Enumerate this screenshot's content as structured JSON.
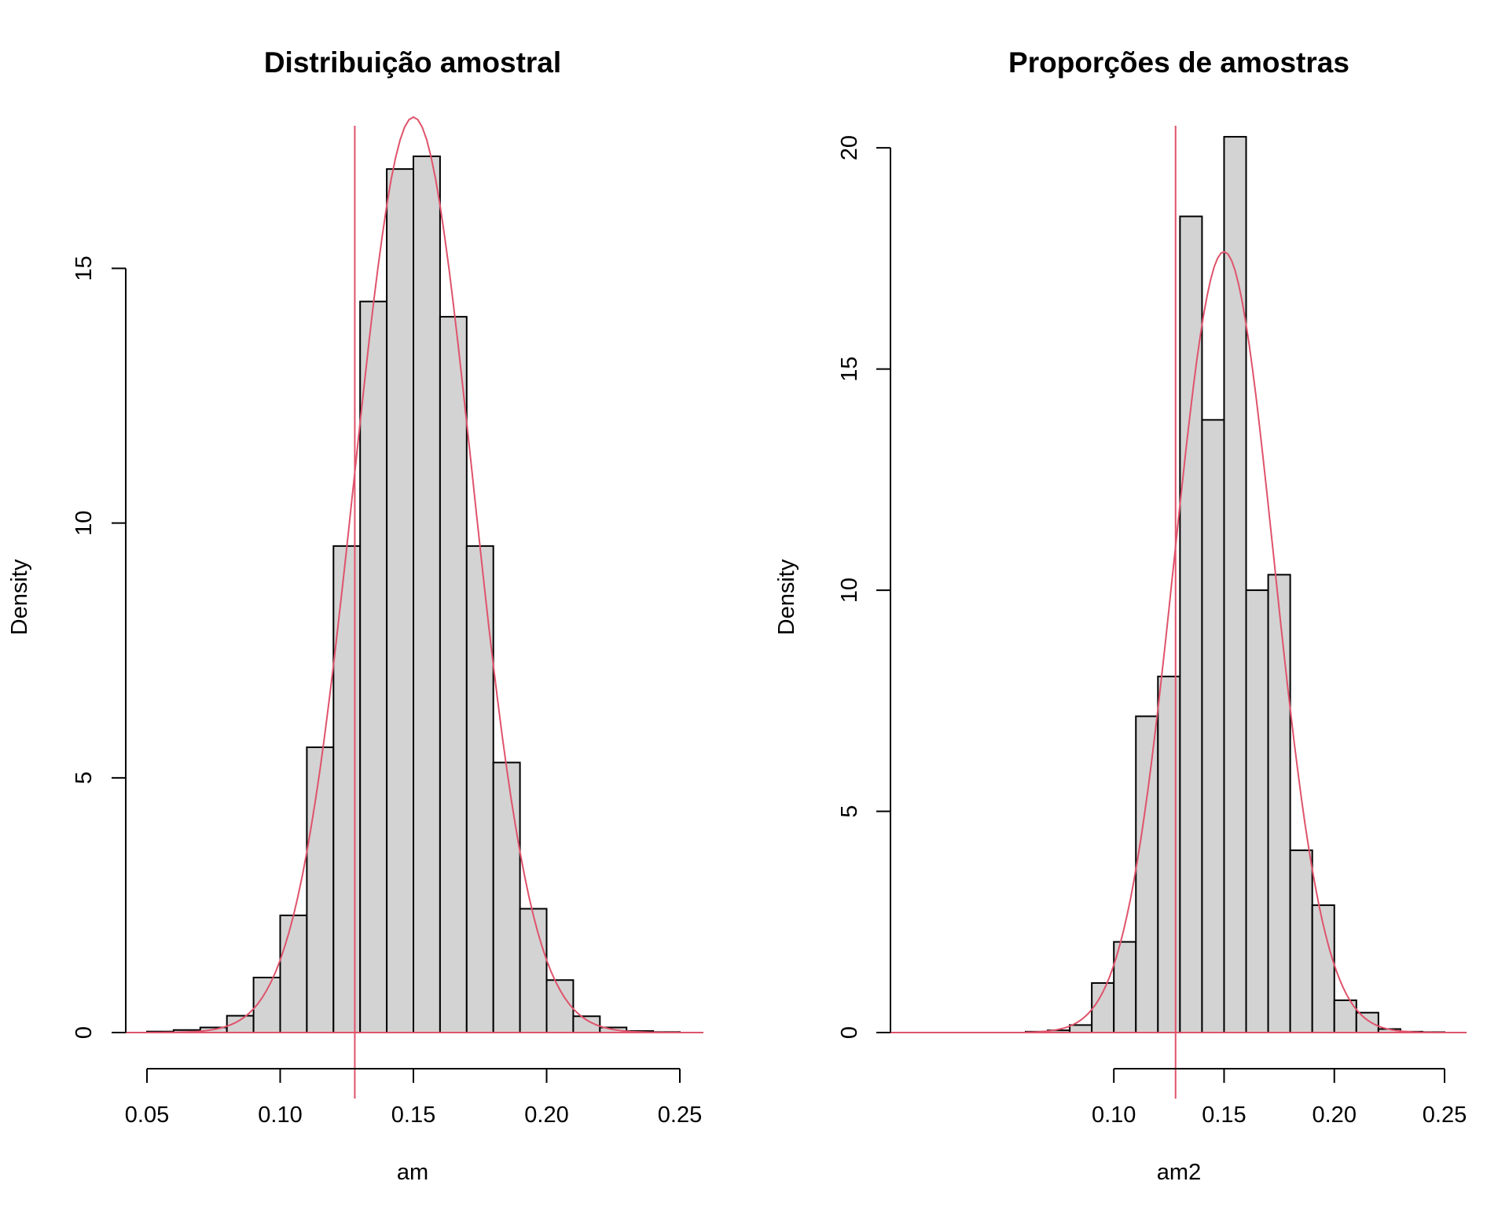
{
  "chart_data": [
    {
      "type": "bar",
      "title": "Distribuição amostral",
      "xlabel": "am",
      "ylabel": "Density",
      "xlim": [
        0.05,
        0.25
      ],
      "ylim": [
        0,
        17.8
      ],
      "x_ticks": [
        "0.05",
        "0.10",
        "0.15",
        "0.20",
        "0.25"
      ],
      "y_ticks": [
        "0",
        "5",
        "10",
        "15"
      ],
      "bin_width": 0.01,
      "bin_starts": [
        0.05,
        0.06,
        0.07,
        0.08,
        0.09,
        0.1,
        0.11,
        0.12,
        0.13,
        0.14,
        0.15,
        0.16,
        0.17,
        0.18,
        0.19,
        0.2,
        0.21,
        0.22,
        0.23,
        0.24
      ],
      "values": [
        0.02,
        0.05,
        0.1,
        0.33,
        1.08,
        2.3,
        5.6,
        9.55,
        14.35,
        16.95,
        17.2,
        14.05,
        9.55,
        5.3,
        2.43,
        1.03,
        0.32,
        0.1,
        0.03,
        0.01
      ],
      "vline": 0.128,
      "curve": {
        "kind": "normal",
        "mean": 0.15,
        "sd": 0.0222
      }
    },
    {
      "type": "bar",
      "title": "Proporções de amostras",
      "xlabel": "am2",
      "ylabel": "Density",
      "xlim": [
        0.06,
        0.25
      ],
      "ylim": [
        0,
        20.5
      ],
      "x_ticks": [
        "0.10",
        "0.15",
        "0.20",
        "0.25"
      ],
      "y_ticks": [
        "0",
        "5",
        "10",
        "15",
        "20"
      ],
      "bin_width": 0.01,
      "bin_starts": [
        0.06,
        0.07,
        0.08,
        0.09,
        0.1,
        0.11,
        0.12,
        0.13,
        0.14,
        0.15,
        0.16,
        0.17,
        0.18,
        0.19,
        0.2,
        0.21,
        0.22,
        0.23,
        0.24
      ],
      "values": [
        0.02,
        0.05,
        0.17,
        1.12,
        2.05,
        7.15,
        8.05,
        18.45,
        13.85,
        20.25,
        10.0,
        10.35,
        4.12,
        2.88,
        0.73,
        0.45,
        0.08,
        0.02,
        0.01
      ],
      "vline": 0.128,
      "curve": {
        "kind": "normal",
        "mean": 0.15,
        "sd": 0.0226
      }
    }
  ]
}
